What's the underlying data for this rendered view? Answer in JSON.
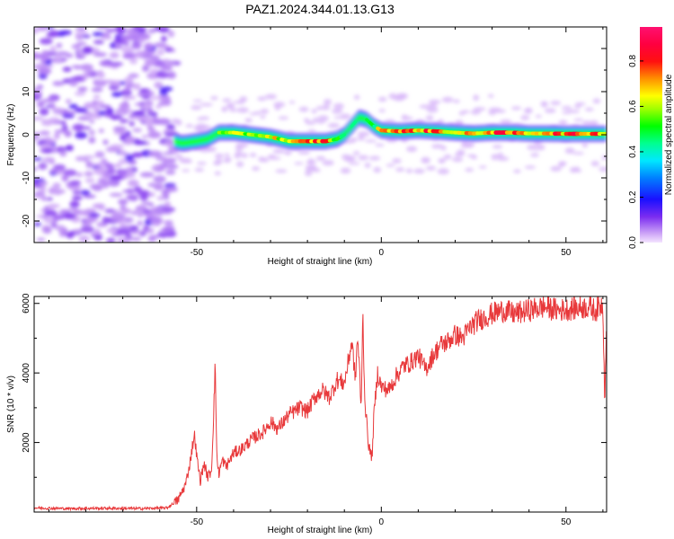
{
  "title": "PAZ1.2024.344.01.13.G13",
  "chart_data": [
    {
      "type": "heatmap",
      "title": "PAZ1.2024.344.01.13.G13",
      "xlabel": "Height of straight line (km)",
      "ylabel": "Frequency (Hz)",
      "xlim": [
        -94,
        61
      ],
      "ylim": [
        -25,
        25
      ],
      "x_ticks": [
        -50,
        0,
        50
      ],
      "y_ticks": [
        -20,
        -10,
        0,
        10,
        20
      ],
      "colorbar": {
        "label": "Normalized spectral amplitude",
        "range": [
          0,
          0.95
        ],
        "ticks": [
          0.0,
          0.2,
          0.4,
          0.6,
          0.8
        ]
      },
      "noise_region_x": [
        -94,
        -56
      ],
      "ridge": {
        "x": [
          -56,
          -54,
          -50,
          -47,
          -44,
          -40,
          -35,
          -30,
          -25,
          -20,
          -15,
          -12,
          -10,
          -8,
          -6,
          -4,
          -2,
          0,
          5,
          10,
          15,
          20,
          25,
          30,
          35,
          40,
          45,
          50,
          55,
          61
        ],
        "frequency": [
          -1.5,
          -2.0,
          -1.5,
          -1.0,
          0.5,
          0.5,
          0.0,
          -0.5,
          -1.5,
          -1.5,
          -1.5,
          -1.0,
          0.0,
          2.0,
          4.0,
          3.5,
          2.0,
          1.0,
          0.8,
          1.0,
          0.8,
          0.5,
          0.3,
          0.5,
          0.5,
          0.3,
          0.3,
          0.2,
          0.2,
          0.2
        ],
        "peak_amplitude": [
          0.3,
          0.4,
          0.45,
          0.5,
          0.6,
          0.65,
          0.7,
          0.75,
          0.7,
          0.85,
          0.9,
          0.55,
          0.5,
          0.45,
          0.4,
          0.5,
          0.6,
          0.9,
          0.85,
          0.85,
          0.9,
          0.7,
          0.8,
          0.9,
          0.85,
          0.8,
          0.9,
          0.85,
          0.9,
          0.85
        ]
      }
    },
    {
      "type": "line",
      "xlabel": "Height of straight line (km)",
      "ylabel": "SNR (10 * v/v)",
      "xlim": [
        -94,
        61
      ],
      "ylim": [
        0,
        6200
      ],
      "x_ticks": [
        -50,
        0,
        50
      ],
      "y_ticks": [
        2000,
        4000,
        6000
      ],
      "color": "#e8393b",
      "series": [
        {
          "x": [
            -94,
            -85,
            -75,
            -65,
            -58,
            -55,
            -53,
            -52,
            -51,
            -50.5,
            -50,
            -49,
            -48,
            -47,
            -46,
            -45.5,
            -45,
            -44.5,
            -44,
            -43,
            -42,
            -40,
            -38,
            -35,
            -32,
            -30,
            -28,
            -25,
            -22,
            -20,
            -18,
            -16,
            -14,
            -12,
            -10,
            -9,
            -8,
            -7,
            -6.5,
            -6,
            -5.5,
            -5,
            -4.5,
            -4,
            -3.5,
            -3,
            -2.5,
            -2,
            -1,
            0,
            2,
            4,
            6,
            8,
            10,
            12,
            14,
            16,
            18,
            20,
            22,
            24,
            26,
            28,
            30,
            33,
            36,
            40,
            44,
            48,
            52,
            56,
            58,
            60,
            60.5,
            61
          ],
          "y": [
            120,
            100,
            110,
            100,
            120,
            350,
            800,
            1300,
            2000,
            2200,
            1600,
            900,
            1400,
            1000,
            1200,
            2500,
            4200,
            1500,
            1100,
            1500,
            1300,
            1700,
            1800,
            2100,
            2300,
            2600,
            2400,
            2800,
            3000,
            2900,
            3300,
            3500,
            3300,
            3800,
            3700,
            4300,
            4900,
            3800,
            5000,
            4400,
            2800,
            5700,
            3300,
            2600,
            2000,
            1700,
            1600,
            2800,
            4000,
            3600,
            3500,
            3900,
            4200,
            4300,
            4500,
            4100,
            4500,
            4800,
            4900,
            5100,
            5000,
            5300,
            5500,
            5600,
            5700,
            5800,
            5700,
            5800,
            5900,
            5800,
            5850,
            5900,
            5800,
            6000,
            3200,
            5700
          ]
        }
      ]
    }
  ]
}
